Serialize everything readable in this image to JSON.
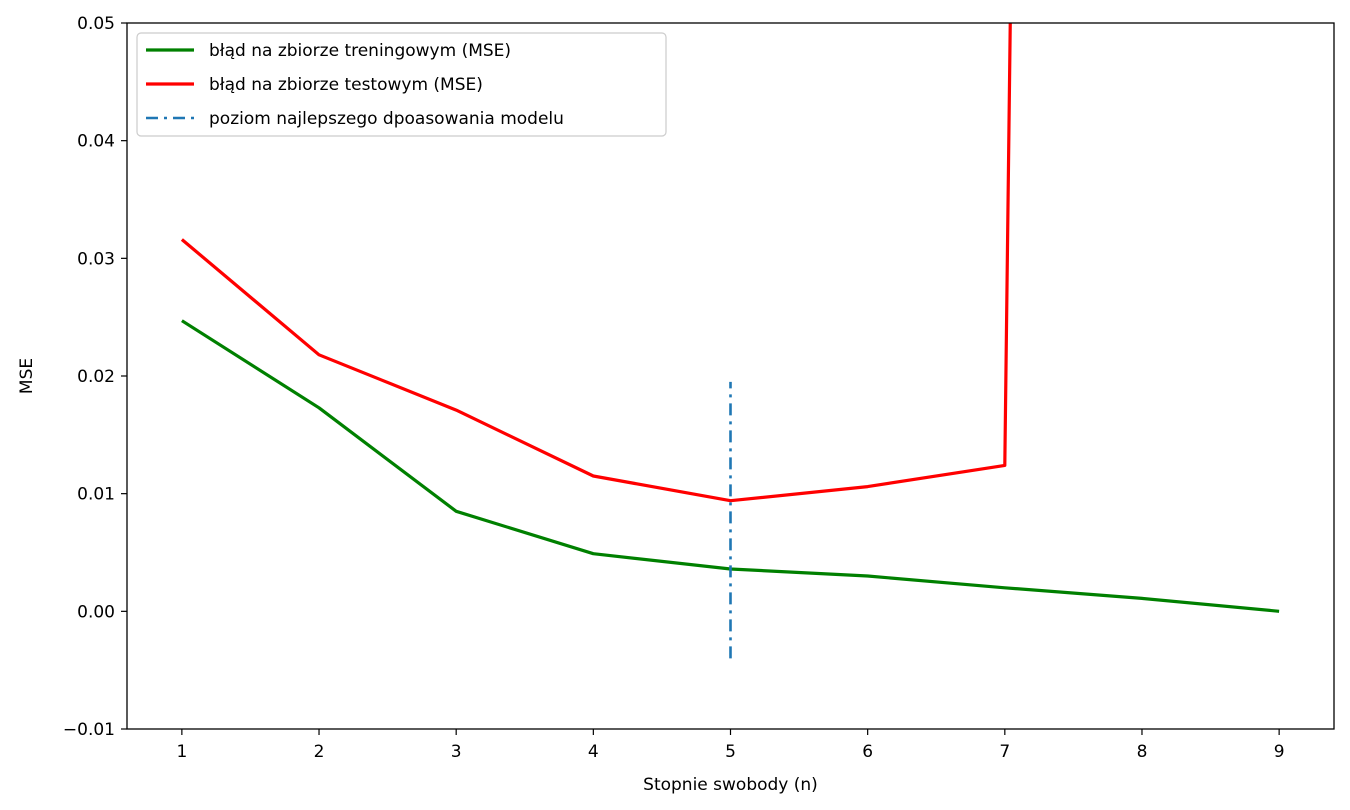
{
  "chart_data": {
    "type": "line",
    "title": "",
    "xlabel": "Stopnie swobody (n)",
    "ylabel": "MSE",
    "xlim": [
      0.6,
      9.4
    ],
    "ylim": [
      -0.01,
      0.05
    ],
    "xticks": [
      1,
      2,
      3,
      4,
      5,
      6,
      7,
      8,
      9
    ],
    "xtick_labels": [
      "1",
      "2",
      "3",
      "4",
      "5",
      "6",
      "7",
      "8",
      "9"
    ],
    "yticks": [
      -0.01,
      0.0,
      0.01,
      0.02,
      0.03,
      0.04,
      0.05
    ],
    "ytick_labels": [
      "−0.01",
      "0.00",
      "0.01",
      "0.02",
      "0.03",
      "0.04",
      "0.05"
    ],
    "grid": false,
    "legend_position": "top-left",
    "series": [
      {
        "name": "błąd na zbiorze treningowym (MSE)",
        "color": "#008000",
        "style": "solid",
        "x": [
          1,
          2,
          3,
          4,
          5,
          6,
          7,
          8,
          9
        ],
        "y": [
          0.0247,
          0.0173,
          0.0085,
          0.0049,
          0.0036,
          0.003,
          0.002,
          0.0011,
          0.0
        ]
      },
      {
        "name": "błąd na zbiorze testowym (MSE)",
        "color": "#ff0000",
        "style": "solid",
        "x": [
          1,
          2,
          3,
          4,
          5,
          6,
          7,
          7.05
        ],
        "y": [
          0.0316,
          0.0218,
          0.0171,
          0.0115,
          0.0094,
          0.0106,
          0.0124,
          0.06
        ]
      },
      {
        "name": "poziom najlepszego dpoasowania modelu",
        "color": "#1f77b4",
        "style": "dashdot",
        "x": [
          5,
          5
        ],
        "y": [
          -0.004,
          0.0195
        ]
      }
    ]
  }
}
